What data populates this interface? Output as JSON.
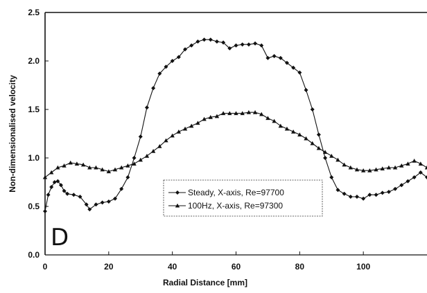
{
  "chart_data": {
    "type": "line",
    "panel_label": "D",
    "xlabel": "Radial Distance [mm]",
    "ylabel": "Non-dimensionalised velocity",
    "xlim": [
      0,
      120
    ],
    "ylim": [
      0,
      2.5
    ],
    "x_ticks": [
      0,
      20,
      40,
      60,
      80,
      100
    ],
    "x_tick_labels": [
      "0",
      "20",
      "40",
      "60",
      "80",
      "100"
    ],
    "y_ticks": [
      0,
      0.5,
      1.0,
      1.5,
      2.0,
      2.5
    ],
    "y_tick_labels": [
      "0.0",
      "0.5",
      "1.0",
      "1.5",
      "2.0",
      "2.5"
    ],
    "grid": false,
    "legend_position": "center-bottom",
    "series": [
      {
        "name": "Steady, X-axis, Re=97700",
        "marker": "diamond",
        "color": "#111111",
        "x": [
          0,
          1,
          2,
          3,
          4,
          5,
          6,
          7,
          9,
          11,
          13,
          14,
          16,
          18,
          20,
          22,
          24,
          26,
          28,
          30,
          32,
          34,
          36,
          38,
          40,
          42,
          44,
          46,
          48,
          50,
          52,
          54,
          56,
          58,
          60,
          62,
          64,
          66,
          68,
          70,
          72,
          74,
          76,
          78,
          80,
          82,
          84,
          86,
          88,
          90,
          92,
          94,
          96,
          98,
          100,
          102,
          104,
          106,
          108,
          110,
          112,
          114,
          116,
          118,
          120
        ],
        "y": [
          0.45,
          0.62,
          0.7,
          0.75,
          0.76,
          0.72,
          0.66,
          0.63,
          0.62,
          0.6,
          0.52,
          0.47,
          0.52,
          0.54,
          0.55,
          0.58,
          0.68,
          0.8,
          1.0,
          1.22,
          1.52,
          1.72,
          1.87,
          1.94,
          2.0,
          2.04,
          2.12,
          2.16,
          2.2,
          2.22,
          2.22,
          2.2,
          2.19,
          2.13,
          2.16,
          2.17,
          2.17,
          2.18,
          2.16,
          2.03,
          2.05,
          2.03,
          1.98,
          1.93,
          1.88,
          1.7,
          1.5,
          1.24,
          1.0,
          0.8,
          0.67,
          0.63,
          0.6,
          0.6,
          0.58,
          0.62,
          0.62,
          0.64,
          0.65,
          0.68,
          0.72,
          0.76,
          0.8,
          0.85,
          0.8
        ]
      },
      {
        "name": "100Hz, X-axis, Re=97300",
        "marker": "triangle",
        "color": "#111111",
        "x": [
          0,
          2,
          4,
          6,
          8,
          10,
          12,
          14,
          16,
          18,
          20,
          22,
          24,
          26,
          28,
          30,
          32,
          34,
          36,
          38,
          40,
          42,
          44,
          46,
          48,
          50,
          52,
          54,
          56,
          58,
          60,
          62,
          64,
          66,
          68,
          70,
          72,
          74,
          76,
          78,
          80,
          82,
          84,
          86,
          88,
          90,
          92,
          94,
          96,
          98,
          100,
          102,
          104,
          106,
          108,
          110,
          112,
          114,
          116,
          118,
          120
        ],
        "y": [
          0.8,
          0.85,
          0.9,
          0.92,
          0.95,
          0.94,
          0.93,
          0.9,
          0.9,
          0.88,
          0.86,
          0.88,
          0.9,
          0.92,
          0.94,
          0.98,
          1.02,
          1.07,
          1.12,
          1.18,
          1.23,
          1.27,
          1.3,
          1.33,
          1.36,
          1.4,
          1.42,
          1.43,
          1.46,
          1.46,
          1.46,
          1.46,
          1.47,
          1.47,
          1.45,
          1.41,
          1.38,
          1.33,
          1.3,
          1.27,
          1.24,
          1.2,
          1.15,
          1.1,
          1.06,
          1.02,
          0.98,
          0.93,
          0.9,
          0.88,
          0.87,
          0.87,
          0.88,
          0.89,
          0.9,
          0.9,
          0.92,
          0.94,
          0.97,
          0.94,
          0.9
        ]
      }
    ]
  }
}
